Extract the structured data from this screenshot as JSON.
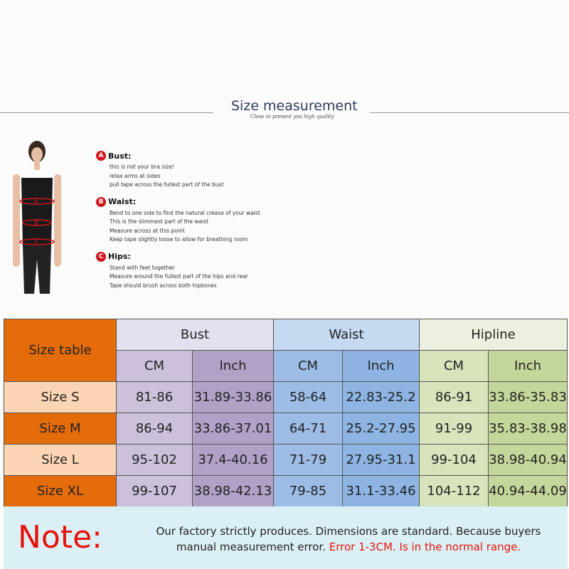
{
  "header": {
    "title": "Size measurement",
    "subtitle": "Close to present you high quality"
  },
  "instructions": [
    {
      "badge": "A",
      "title": "Bust:",
      "lines": [
        "this is not your bra size!",
        "relax arms at sides",
        "pull tape across the fullest part of the bust"
      ]
    },
    {
      "badge": "B",
      "title": "Waist:",
      "lines": [
        "Bend  to one side to find the natural crease of your waist",
        "This is the slimmest part of the waist",
        "Measure across at this point",
        "Keep tape slightly loose to allow for breathing room"
      ]
    },
    {
      "badge": "C",
      "title": "Hips:",
      "lines": [
        "Stand with feet together",
        "Measure around the fullest part of the hips and rear",
        "Tape should brush across both hipbones"
      ]
    }
  ],
  "figure": {
    "markers": [
      "A",
      "B",
      "C"
    ]
  },
  "table": {
    "corner": "Size table",
    "groups": [
      "Bust",
      "Waist",
      "Hipline"
    ],
    "units": [
      "CM",
      "Inch",
      "CM",
      "Inch",
      "CM",
      "Inch"
    ],
    "rows": [
      {
        "size": "Size S",
        "cells": [
          "81-86",
          "31.89-33.86",
          "58-64",
          "22.83-25.2",
          "86-91",
          "33.86-35.83"
        ]
      },
      {
        "size": "Size M",
        "cells": [
          "86-94",
          "33.86-37.01",
          "64-71",
          "25.2-27.95",
          "91-99",
          "35.83-38.98"
        ]
      },
      {
        "size": "Size L",
        "cells": [
          "95-102",
          "37.4-40.16",
          "71-79",
          "27.95-31.1",
          "99-104",
          "38.98-40.94"
        ]
      },
      {
        "size": "Size XL",
        "cells": [
          "99-107",
          "38.98-42.13",
          "79-85",
          "31.1-33.46",
          "104-112",
          "40.94-44.09"
        ]
      }
    ]
  },
  "note": {
    "label": "Note:",
    "text1": "Our factory strictly produces. Dimensions are standard. Because buyers",
    "text2": "manual measurement error.",
    "error": "Error 1-3CM. Is in the normal range."
  }
}
